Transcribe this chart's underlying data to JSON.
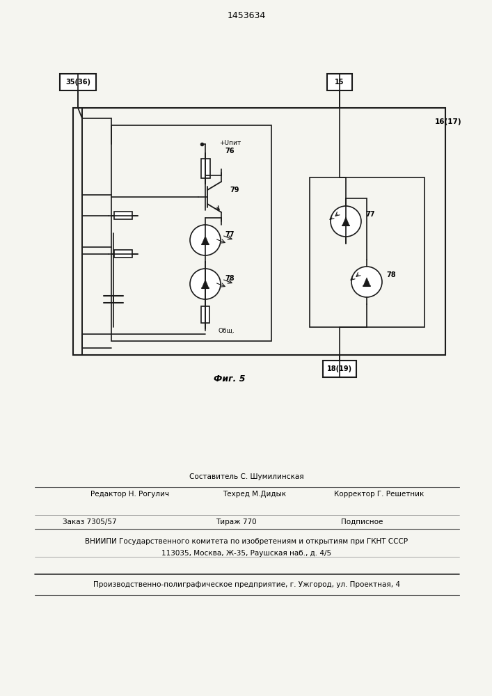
{
  "title": "1453634",
  "fig_label": "Фиг. 5",
  "bg_color": "#f5f5f0",
  "line_color": "#1a1a1a",
  "terminal_35_36": "35(36)",
  "terminal_15": "15",
  "terminal_16_17": "16(17)",
  "terminal_18_19": "18(19)",
  "label_76": "76",
  "label_79": "79",
  "label_77": "77",
  "label_78": "78",
  "label_upit": "+Uпит",
  "label_obsh": "Общ.",
  "editor_line": "Редактор Н. Рогулич",
  "composer_line": "Составитель С. Шумилинская",
  "techred_line": "Техред М.Дидык",
  "corrector_line": "Корректор Г. Решетник",
  "order_line": "Заказ 7305/57",
  "tirazh_line": "Тираж 770",
  "podpisnoe_line": "Подписное",
  "vniiipi_line": "ВНИИПИ Государственного комитета по изобретениям и открытиям при ГКНТ СССР",
  "address_line": "113035, Москва, Ж-35, Раушская наб., д. 4/5",
  "proizv_line": "Производственно-полиграфическое предприятие, г. Ужгород, ул. Проектная, 4"
}
